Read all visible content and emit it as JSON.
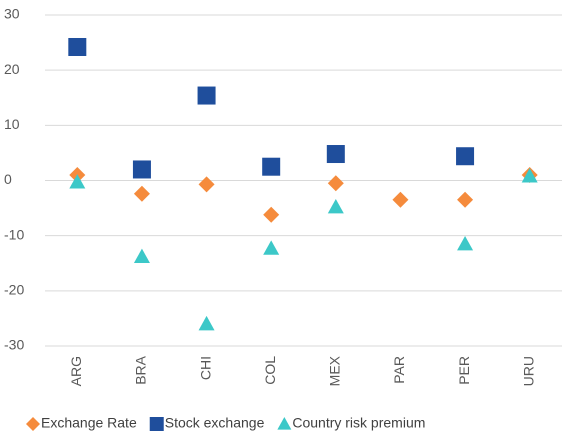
{
  "chart_data": {
    "type": "scatter",
    "categories": [
      "ARG",
      "BRA",
      "CHI",
      "COL",
      "MEX",
      "PAR",
      "PER",
      "URU"
    ],
    "series": [
      {
        "name": "Exchange Rate",
        "color": "#f58b3c",
        "marker": "diamond",
        "values": [
          1,
          -2.4,
          -0.7,
          -6.2,
          -0.5,
          -3.5,
          -3.5,
          1
        ]
      },
      {
        "name": "Stock exchange",
        "color": "#1f4e9c",
        "marker": "square",
        "values": [
          24.2,
          2,
          15.4,
          2.5,
          4.8,
          null,
          4.4,
          null
        ]
      },
      {
        "name": "Country risk premium",
        "color": "#3cc8c8",
        "marker": "triangle",
        "values": [
          -0.3,
          -13.8,
          -26,
          -12.3,
          -4.8,
          null,
          -11.5,
          0.8
        ]
      }
    ],
    "ylim": [
      -30,
      30
    ],
    "yticks": [
      -30,
      -20,
      -10,
      0,
      10,
      20,
      30
    ],
    "grid": true
  }
}
